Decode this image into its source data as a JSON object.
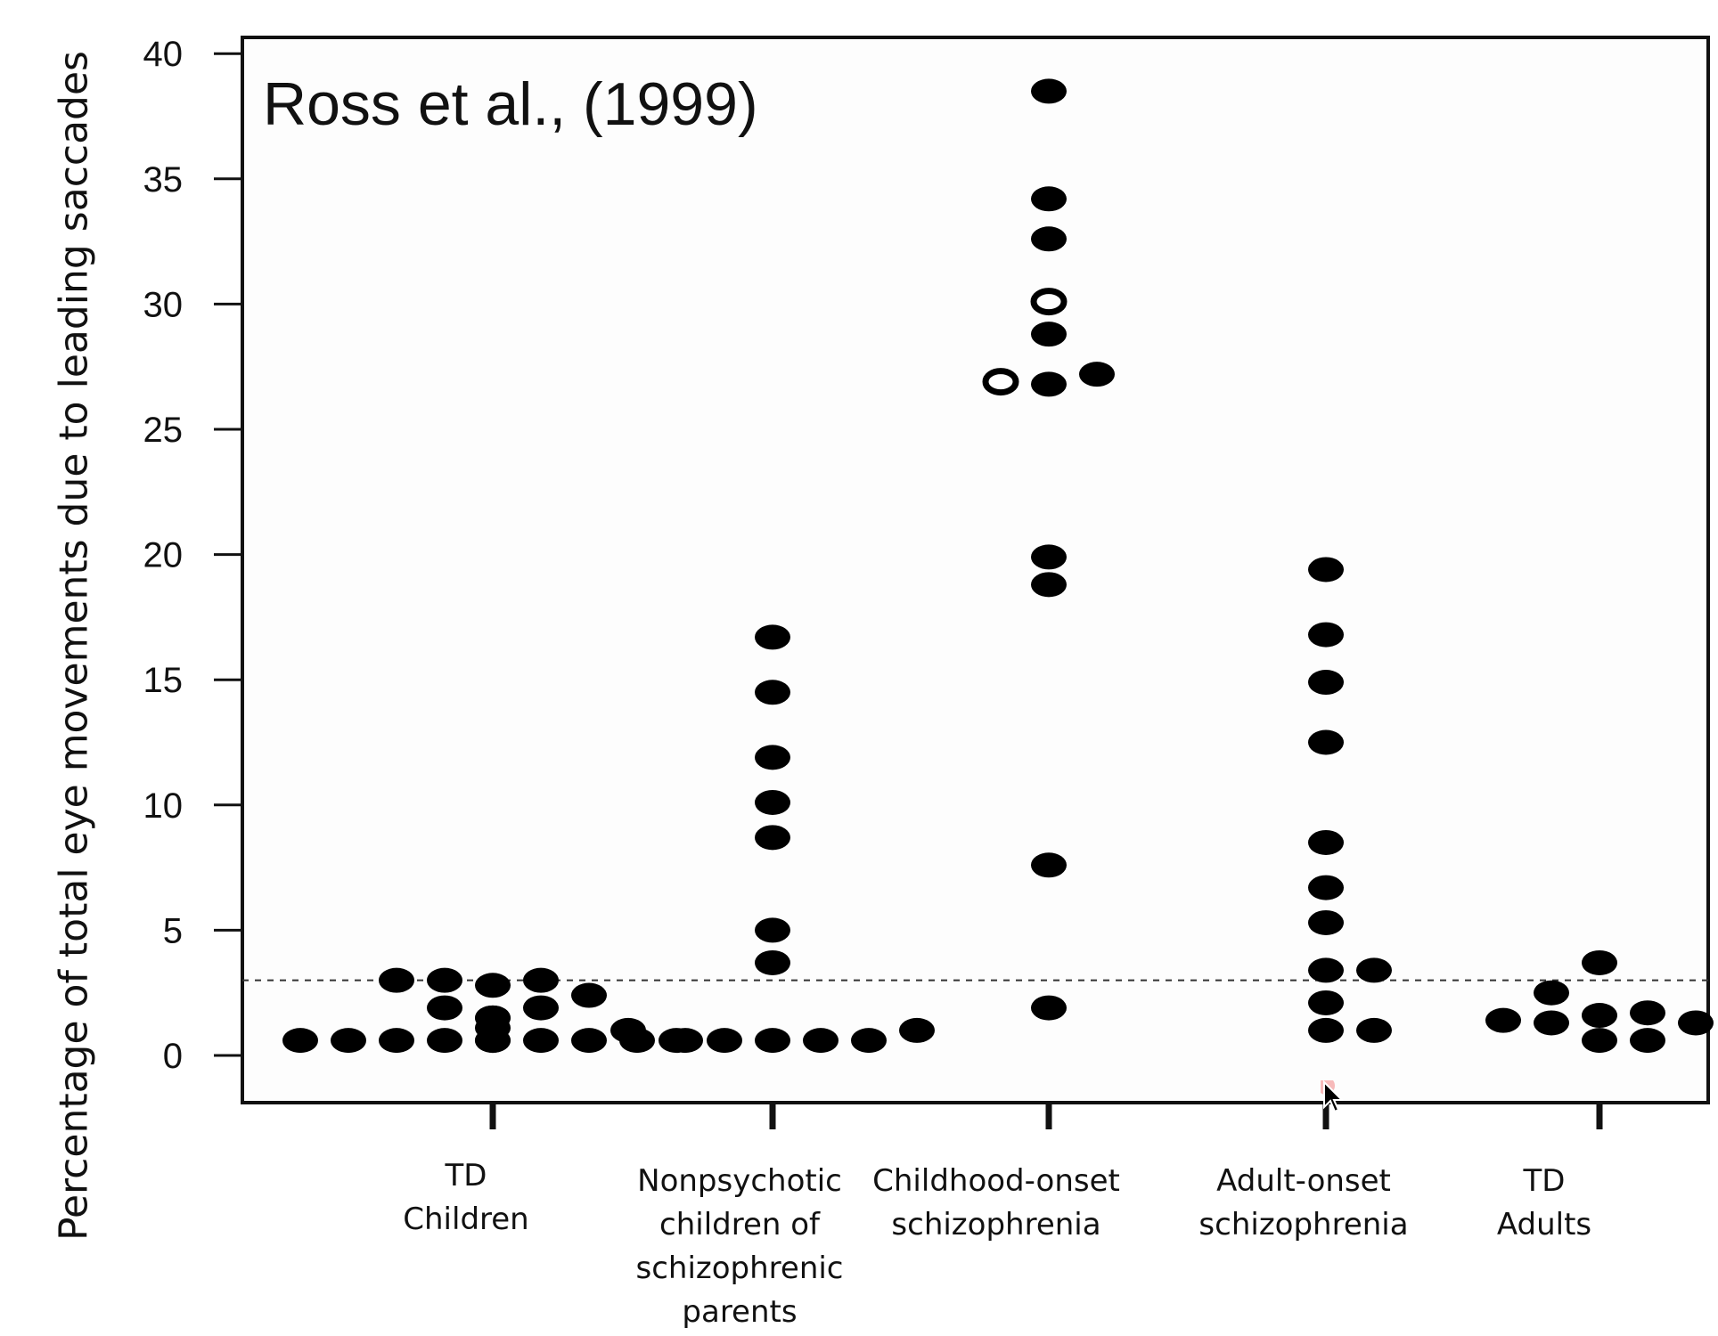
{
  "chart_data": {
    "type": "scatter",
    "title": "Ross et al., (1999)",
    "ylabel": "Percentage of total eye movements due to leading saccades",
    "ylim": [
      -2,
      40
    ],
    "yticks": [
      0,
      5,
      10,
      15,
      20,
      25,
      30,
      35,
      40
    ],
    "grid": false,
    "reference_line": {
      "y": 3,
      "style": "dashed"
    },
    "categories": [
      [
        "TD",
        "Children"
      ],
      [
        "Nonpsychotic",
        "children of",
        "schizophrenic",
        "parents"
      ],
      [
        "Childhood-onset",
        "schizophrenia"
      ],
      [
        "Adult-onset",
        "schizophrenia"
      ],
      [
        "TD",
        "Adults"
      ]
    ],
    "groups": [
      {
        "filled": [
          0.6,
          0.6,
          0.6,
          0.6,
          0.6,
          0.6,
          0.6,
          0.6,
          0.6,
          0.6,
          1.1,
          1.5,
          1.5,
          1.9,
          1.9,
          2.4,
          2.8,
          3.0,
          3.0,
          3.0
        ],
        "open": []
      },
      {
        "filled": [
          0.6,
          0.6,
          0.6,
          0.6,
          0.6,
          1.0,
          1.0,
          3.7,
          5.0,
          8.7,
          10.1,
          11.9,
          14.5,
          16.7
        ],
        "open": []
      },
      {
        "filled": [
          1.9,
          7.6,
          18.8,
          19.9,
          26.8,
          27.2,
          28.8,
          32.6,
          34.2,
          38.5
        ],
        "open": [
          26.9,
          30.1
        ]
      },
      {
        "filled": [
          1.0,
          1.0,
          2.1,
          3.4,
          3.4,
          5.3,
          6.7,
          8.5,
          12.5,
          14.9,
          16.8,
          19.4
        ],
        "open": []
      },
      {
        "filled": [
          0.6,
          0.6,
          1.3,
          1.3,
          1.4,
          1.6,
          1.7,
          2.5,
          3.7
        ],
        "open": []
      }
    ]
  },
  "colors": {
    "dot": "#000000",
    "axis": "#111111",
    "background": "#ffffff"
  },
  "overlay": {
    "cursor": "arrow-cursor-icon"
  }
}
